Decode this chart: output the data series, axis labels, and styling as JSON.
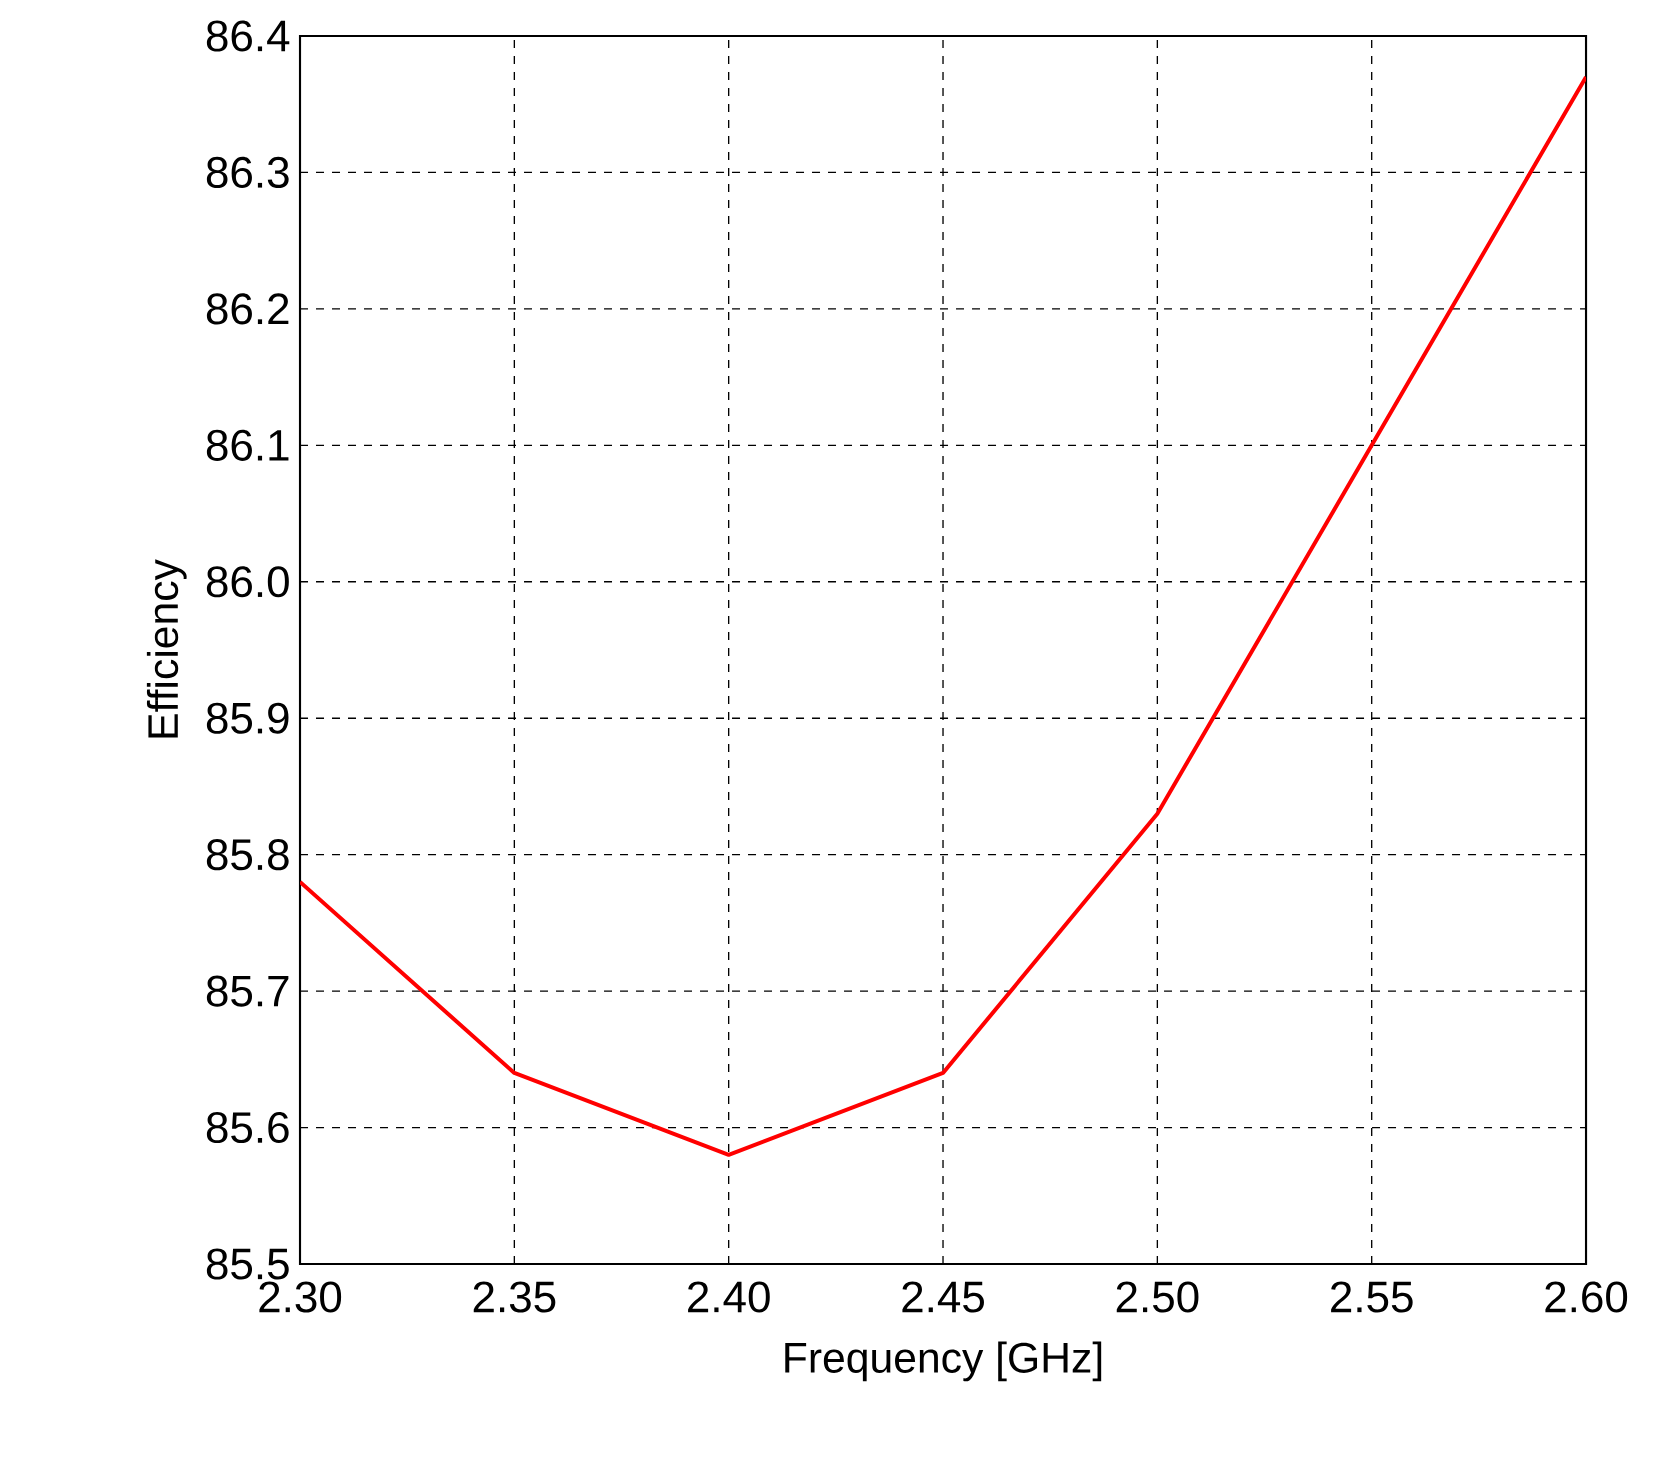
{
  "chart_data": {
    "type": "line",
    "xlabel": "Frequency [GHz]",
    "ylabel": "Efficiency",
    "x": [
      2.3,
      2.35,
      2.4,
      2.45,
      2.5,
      2.55,
      2.6
    ],
    "series": [
      {
        "color": "#ff0000",
        "values": [
          85.78,
          85.64,
          85.58,
          85.64,
          85.83,
          86.1,
          86.37
        ]
      }
    ],
    "xlim": [
      2.3,
      2.6
    ],
    "xticks": [
      {
        "value": 2.3,
        "label": "2.30"
      },
      {
        "value": 2.35,
        "label": "2.35"
      },
      {
        "value": 2.4,
        "label": "2.40"
      },
      {
        "value": 2.45,
        "label": "2.45"
      },
      {
        "value": 2.5,
        "label": "2.50"
      },
      {
        "value": 2.55,
        "label": "2.55"
      },
      {
        "value": 2.6,
        "label": "2.60"
      }
    ],
    "ylim": [
      85.5,
      86.4
    ],
    "yticks": [
      85.5,
      85.6,
      85.7,
      85.8,
      85.9,
      {
        "value": 86.0,
        "label": "86.0"
      },
      86.1,
      86.2,
      86.3,
      86.4
    ],
    "grid": true,
    "line_style": "solid"
  }
}
